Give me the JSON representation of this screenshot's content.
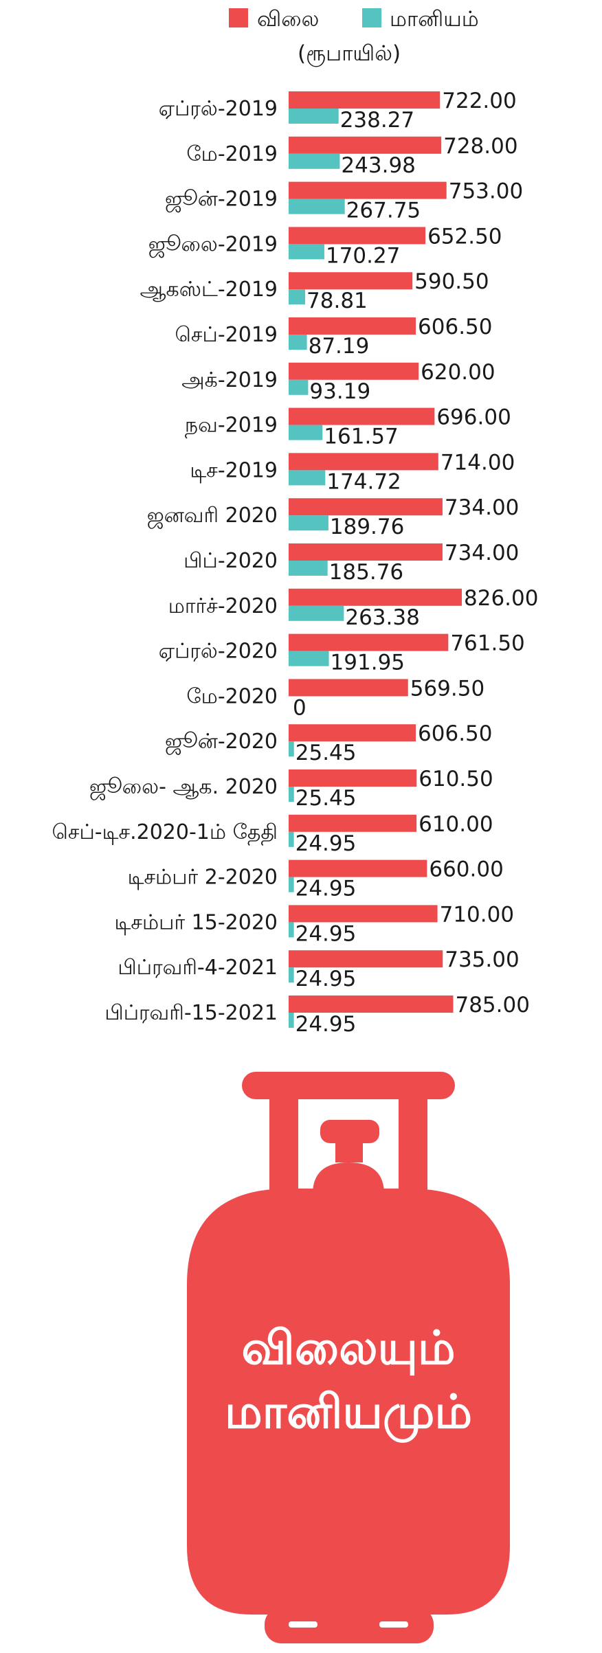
{
  "legend": {
    "price_label": "விலை",
    "subsidy_label": "மானியம்",
    "unit": "(ரூபாயில்)"
  },
  "colors": {
    "price": "#ee4b4c",
    "subsidy": "#55c3c0"
  },
  "chart_data": {
    "type": "bar",
    "orientation": "horizontal",
    "categories": [
      "ஏப்ரல்-2019",
      "மே-2019",
      "ஜூன்-2019",
      "ஜூலை-2019",
      "ஆகஸ்ட்-2019",
      "செப்-2019",
      "அக்-2019",
      "நவ-2019",
      "டிச-2019",
      "ஜனவரி 2020",
      "பிப்-2020",
      "மார்ச்-2020",
      "ஏப்ரல்-2020",
      "மே-2020",
      "ஜூன்-2020",
      "ஜூலை- ஆக. 2020",
      "செப்-டிச.2020-1ம் தேதி",
      "டிசம்பர் 2-2020",
      "டிசம்பர் 15-2020",
      "பிப்ரவரி-4-2021",
      "பிப்ரவரி-15-2021"
    ],
    "series": [
      {
        "name": "விலை",
        "values": [
          722.0,
          728.0,
          753.0,
          652.5,
          590.5,
          606.5,
          620.0,
          696.0,
          714.0,
          734.0,
          734.0,
          826.0,
          761.5,
          569.5,
          606.5,
          610.5,
          610.0,
          660.0,
          710.0,
          735.0,
          785.0
        ],
        "labels": [
          "722.00",
          "728.00",
          "753.00",
          "652.50",
          "590.50",
          "606.50",
          "620.00",
          "696.00",
          "714.00",
          "734.00",
          "734.00",
          "826.00",
          "761.50",
          "569.50",
          "606.50",
          "610.50",
          "610.00",
          "660.00",
          "710.00",
          "735.00",
          "785.00"
        ]
      },
      {
        "name": "மானியம்",
        "values": [
          238.27,
          243.98,
          267.75,
          170.27,
          78.81,
          87.19,
          93.19,
          161.57,
          174.72,
          189.76,
          185.76,
          263.38,
          191.95,
          0,
          25.45,
          25.45,
          24.95,
          24.95,
          24.95,
          24.95,
          24.95
        ],
        "labels": [
          "238.27",
          "243.98",
          "267.75",
          "170.27",
          "78.81",
          "87.19",
          "93.19",
          "161.57",
          "174.72",
          "189.76",
          "185.76",
          "263.38",
          "191.95",
          "0",
          "25.45",
          "25.45",
          "24.95",
          "24.95",
          "24.95",
          "24.95",
          "24.95"
        ]
      }
    ],
    "xlim": [
      0,
      850
    ],
    "legend_position": "top-right",
    "grid": false
  },
  "graphic": {
    "title_line1": "விலையும்",
    "title_line2": "மானியமும்"
  }
}
